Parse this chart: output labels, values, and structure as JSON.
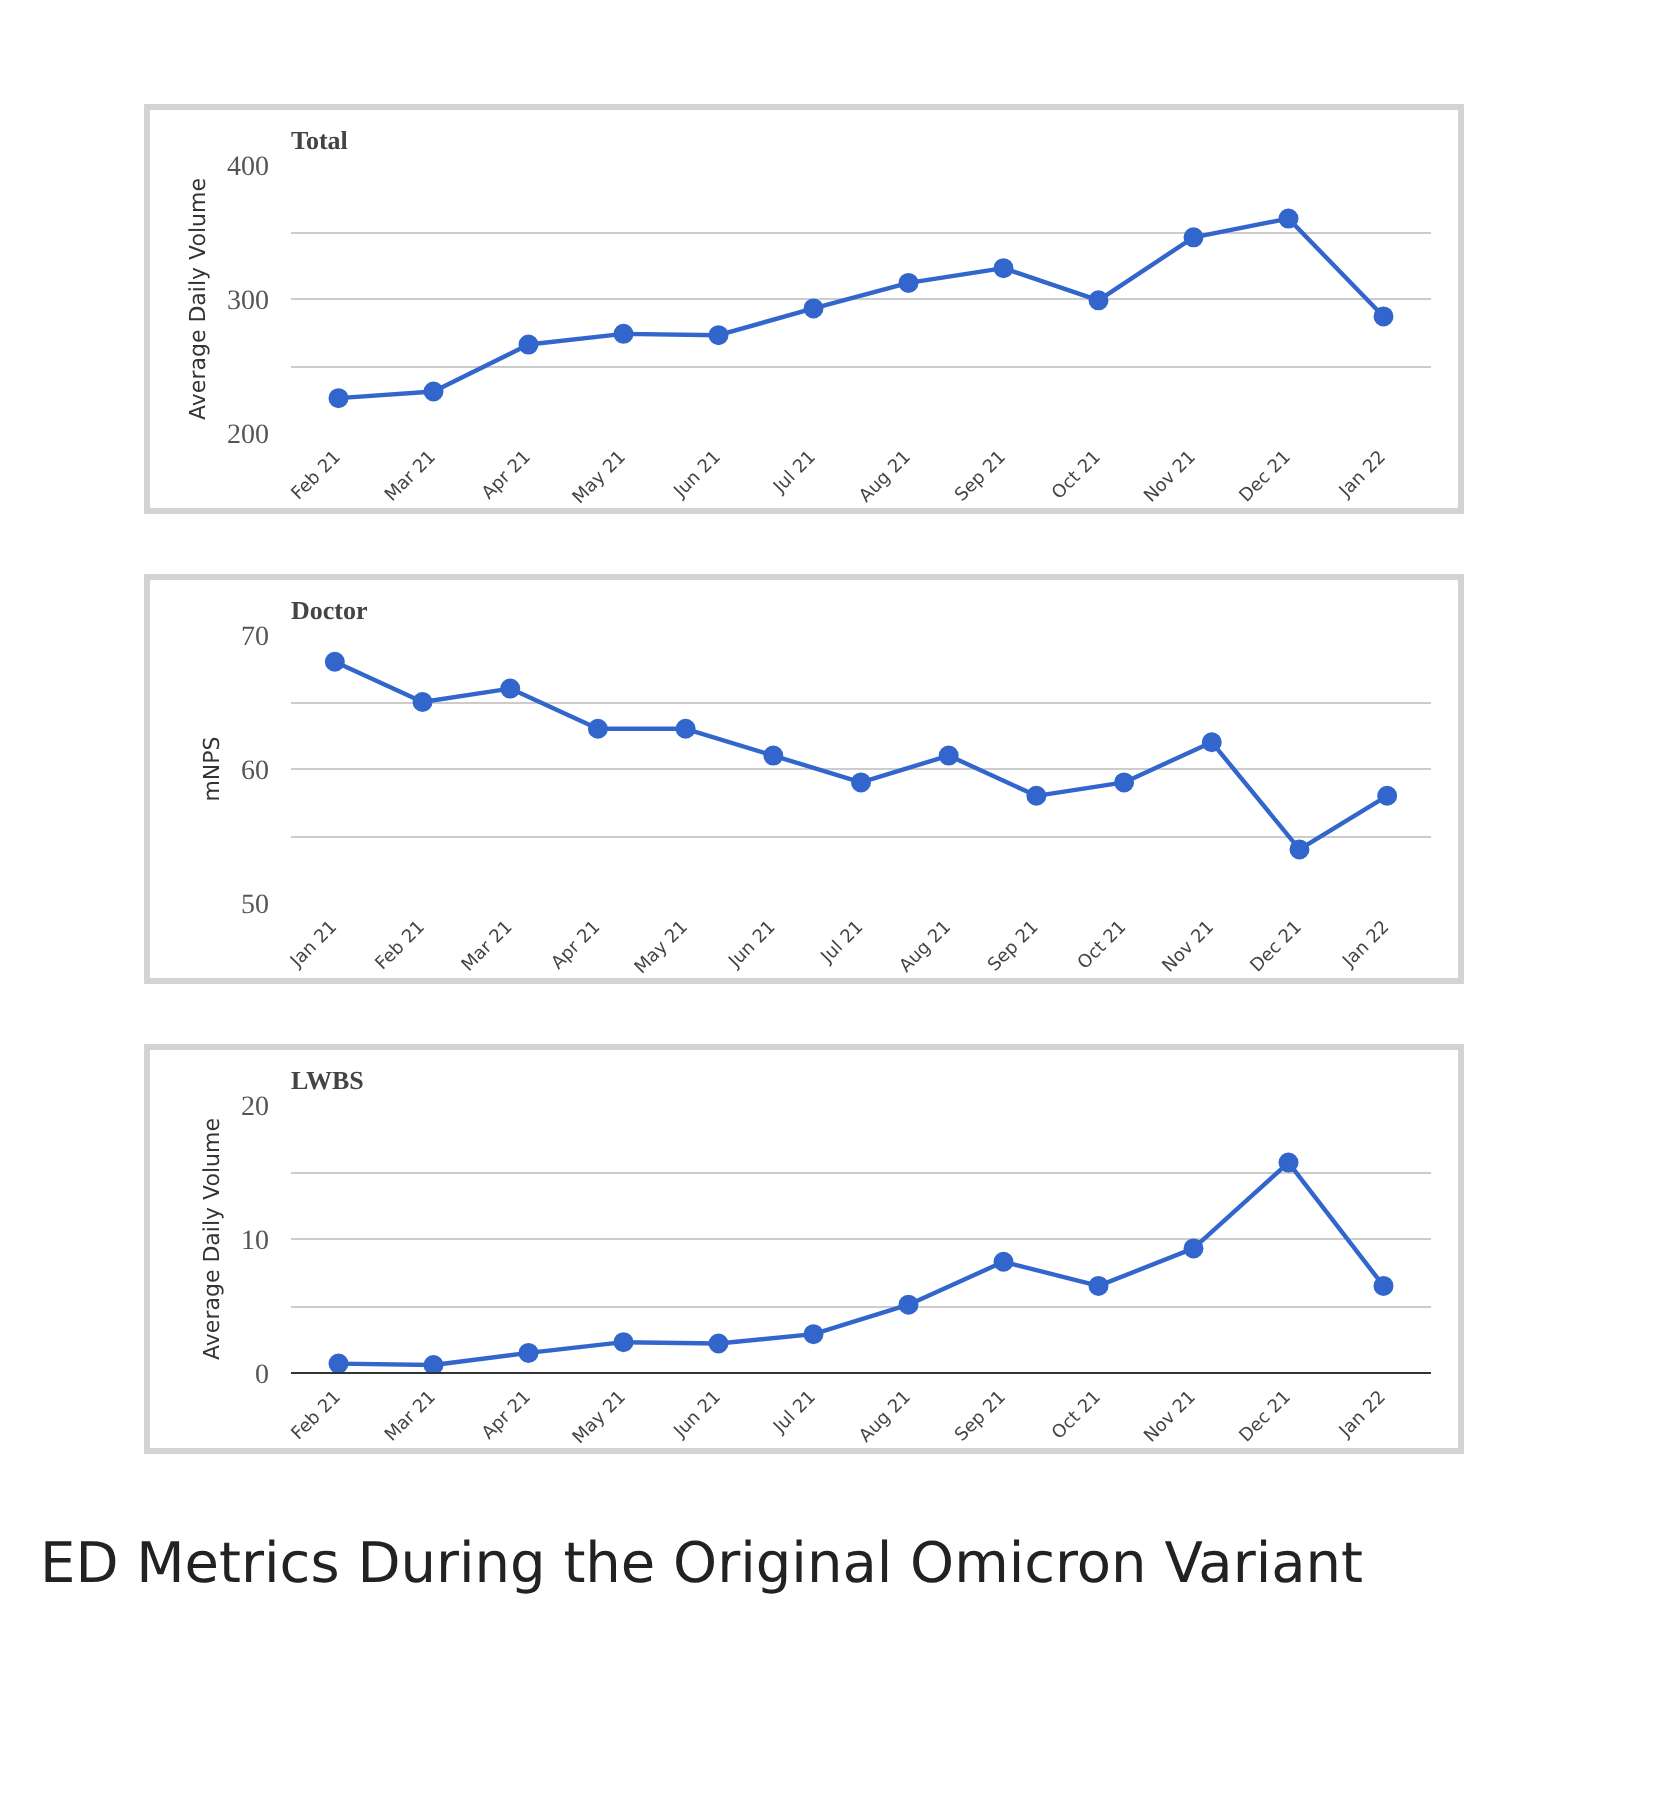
{
  "chart_data": [
    {
      "type": "line",
      "title": "Total",
      "ylabel": "Average Daily Volume",
      "categories": [
        "Feb 21",
        "Mar 21",
        "Apr 21",
        "May 21",
        "Jun 21",
        "Jul 21",
        "Aug 21",
        "Sep 21",
        "Oct 21",
        "Nov 21",
        "Dec 21",
        "Jan 22"
      ],
      "series": [
        {
          "color": "#3366cc",
          "values": [
            226,
            231,
            266,
            274,
            273,
            293,
            312,
            323,
            299,
            346,
            360,
            287
          ]
        }
      ],
      "ylim": [
        200,
        400
      ],
      "yticks": [
        200,
        {
          "value": 250,
          "label": null
        },
        300,
        {
          "value": 350,
          "label": null
        },
        400
      ],
      "grid": "y",
      "marker": "circle",
      "line_style": "solid"
    },
    {
      "type": "line",
      "title": "Doctor",
      "ylabel": "mNPS",
      "categories": [
        "Jan 21",
        "Feb 21",
        "Mar 21",
        "Apr 21",
        "May 21",
        "Jun 21",
        "Jul 21",
        "Aug 21",
        "Sep 21",
        "Oct 21",
        "Nov 21",
        "Dec 21",
        "Jan 22"
      ],
      "series": [
        {
          "color": "#3366cc",
          "values": [
            68,
            65,
            66,
            63,
            63,
            61,
            59,
            61,
            58,
            59,
            62,
            54,
            58
          ]
        }
      ],
      "ylim": [
        50,
        70
      ],
      "yticks": [
        50,
        {
          "value": 55,
          "label": null
        },
        60,
        {
          "value": 65,
          "label": null
        },
        70
      ],
      "grid": "y",
      "marker": "circle",
      "line_style": "solid"
    },
    {
      "type": "line",
      "title": "LWBS",
      "ylabel": "Average Daily Volume",
      "categories": [
        "Feb 21",
        "Mar 21",
        "Apr 21",
        "May 21",
        "Jun 21",
        "Jul 21",
        "Aug 21",
        "Sep 21",
        "Oct 21",
        "Nov 21",
        "Dec 21",
        "Jan 22"
      ],
      "series": [
        {
          "color": "#3366cc",
          "values": [
            0.7,
            0.6,
            1.5,
            2.3,
            2.2,
            2.9,
            5.1,
            8.3,
            6.5,
            9.3,
            15.7,
            6.5
          ]
        }
      ],
      "ylim": [
        0,
        20
      ],
      "yticks": [
        0,
        {
          "value": 5,
          "label": null
        },
        10,
        {
          "value": 15,
          "label": null
        },
        20
      ],
      "grid": "y",
      "marker": "circle",
      "line_style": "solid",
      "annotations": [
        "ED Metrics During the Original Omicron Variant"
      ]
    }
  ]
}
